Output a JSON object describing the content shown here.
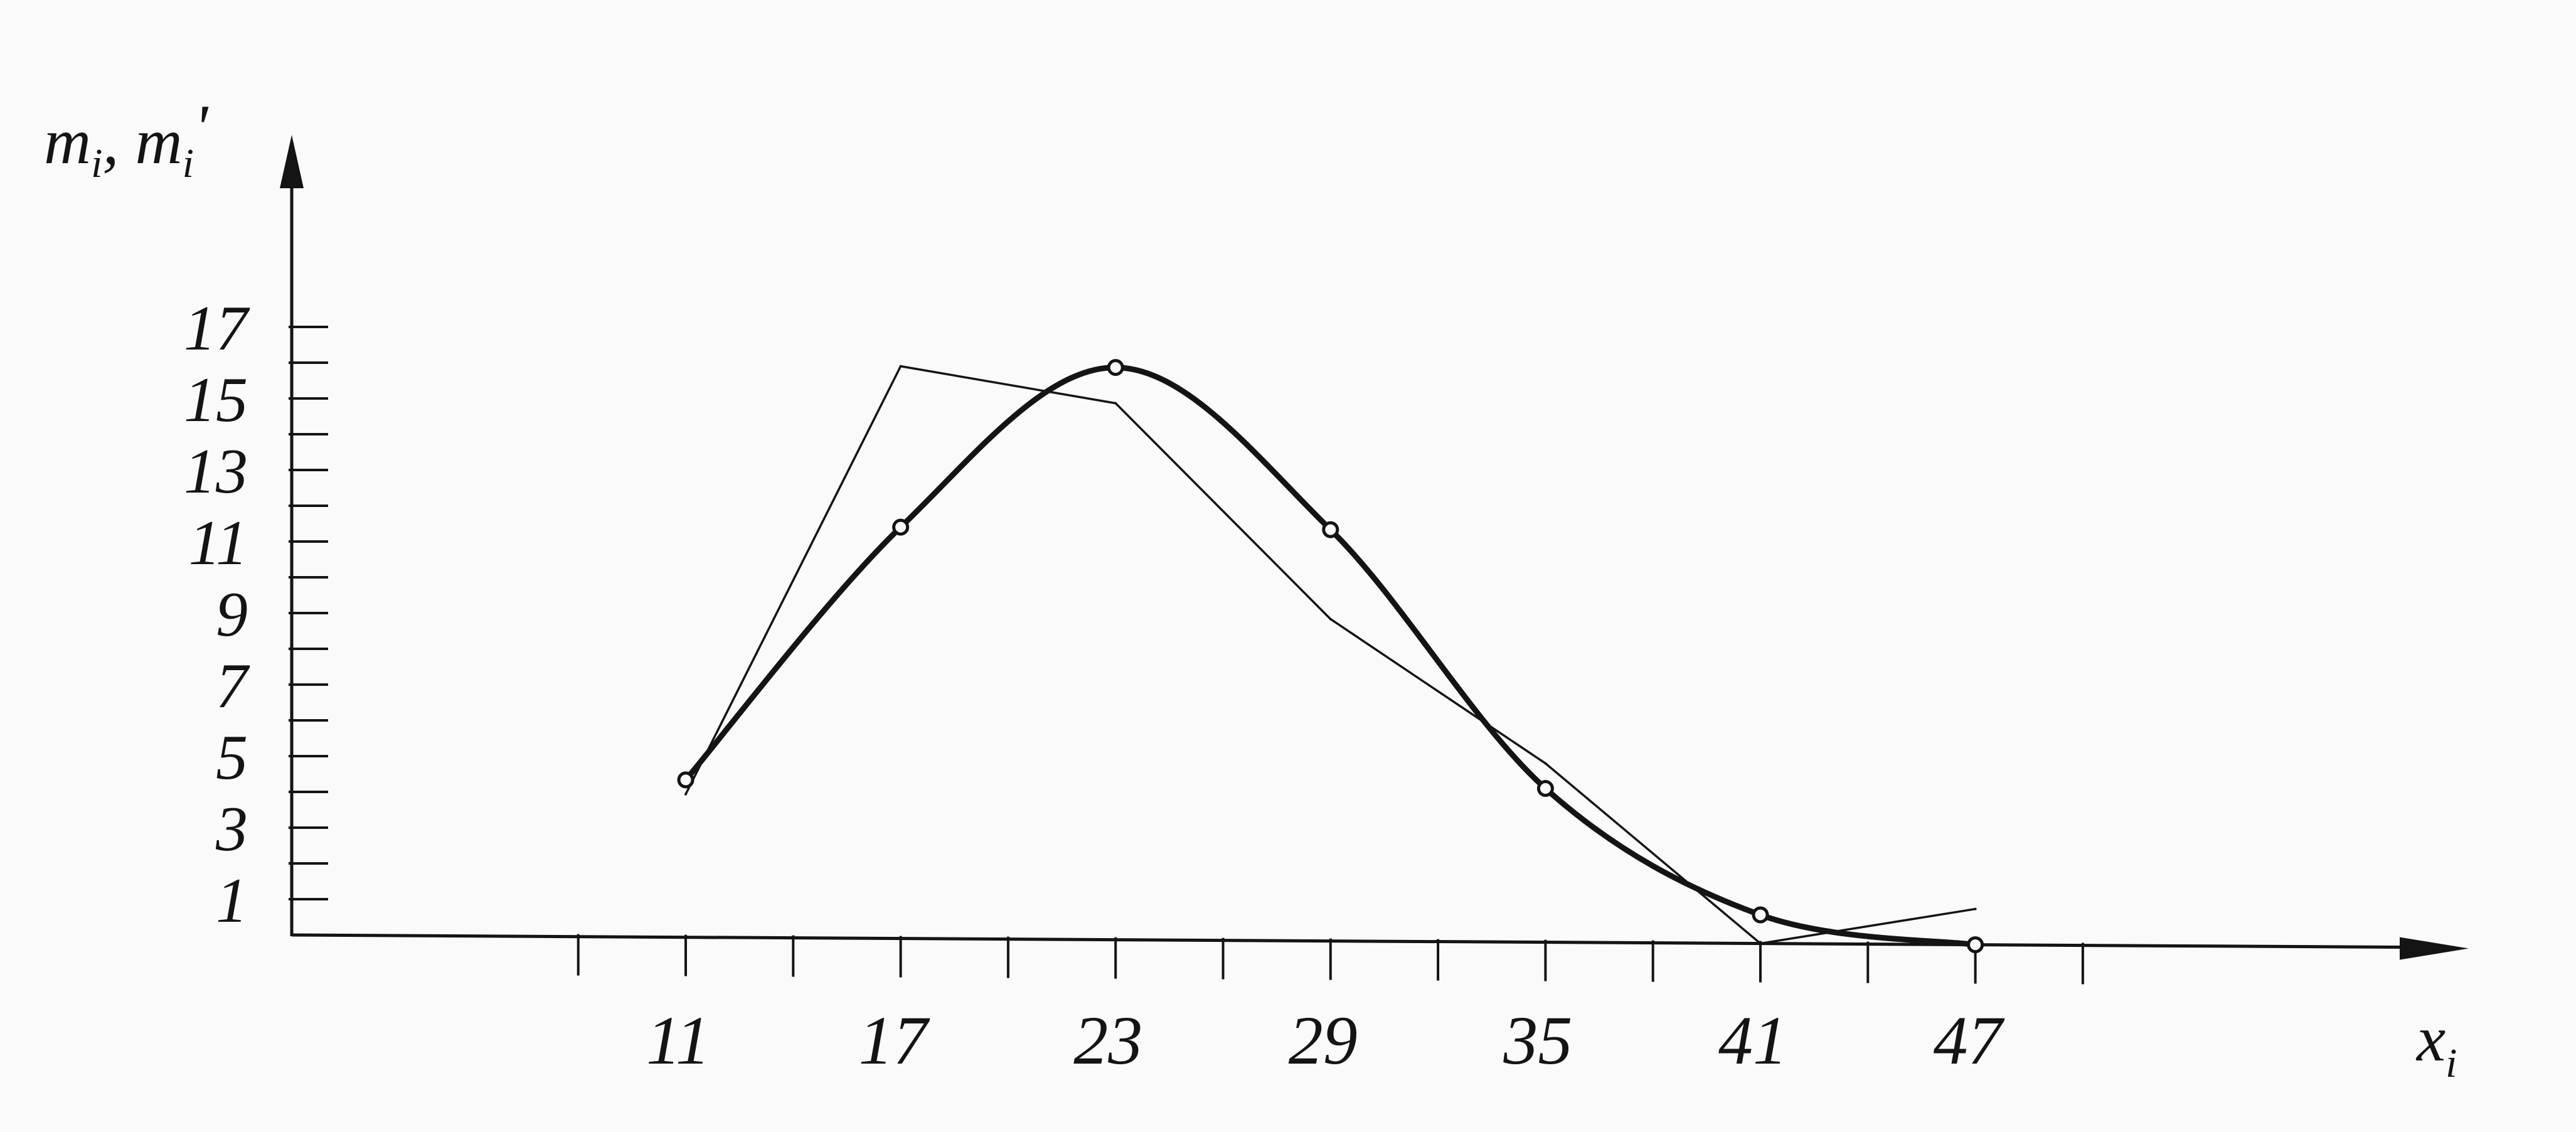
{
  "chart_data": {
    "type": "line",
    "title": "",
    "xlabel": "x_i",
    "ylabel": "m_i, m_i'",
    "x_ticks": [
      11,
      17,
      23,
      29,
      35,
      41,
      47
    ],
    "y_ticks": [
      1,
      3,
      5,
      7,
      9,
      11,
      13,
      15,
      17
    ],
    "xlim": [
      5,
      56
    ],
    "ylim": [
      0,
      18
    ],
    "grid": false,
    "legend": "none",
    "series": [
      {
        "role": "empirical polygon (m_i)",
        "style": "thin",
        "x": [
          11,
          17,
          23,
          29,
          35,
          41,
          47
        ],
        "values": [
          4,
          16,
          15,
          9,
          5,
          0,
          1
        ]
      },
      {
        "role": "theoretical smoothed curve (m_i')",
        "style": "thick-smooth",
        "x": [
          11,
          17,
          23,
          29,
          35,
          41,
          47
        ],
        "values": [
          4.4,
          11.5,
          16.0,
          11.5,
          4.3,
          0.8,
          0.0
        ]
      }
    ]
  },
  "colors": {
    "ink": "#141414",
    "paper": "#fafafa"
  }
}
